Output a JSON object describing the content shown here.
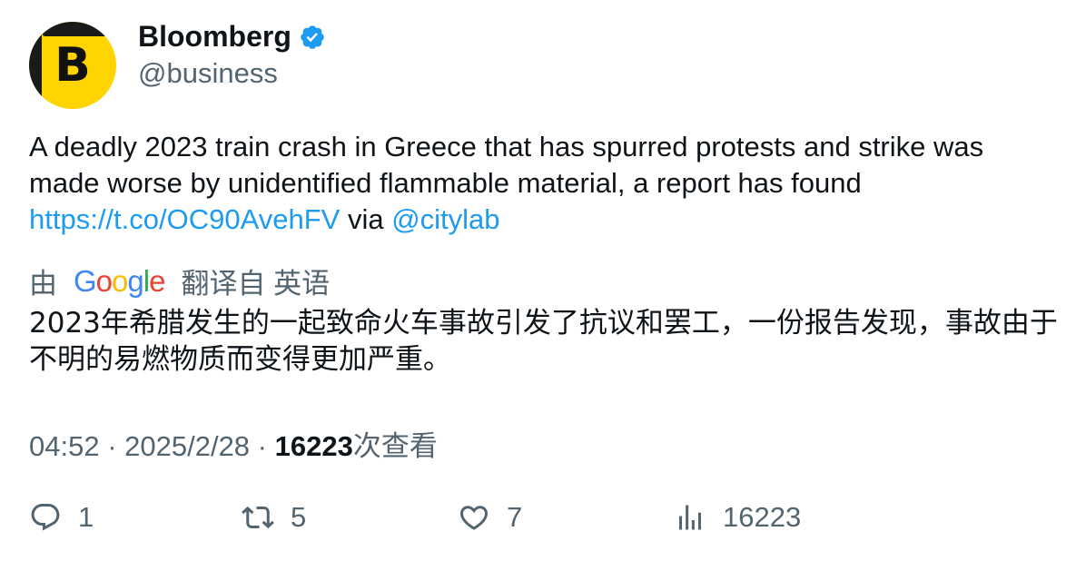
{
  "author": {
    "name": "Bloomberg",
    "handle": "@business",
    "avatar_letter": "B",
    "verified_icon": "verified-badge-icon",
    "verified_color": "#1d9bf0"
  },
  "tweet": {
    "text_before_link": "A deadly 2023 train crash in Greece that has spurred protests and strike was made worse by unidentified flammable material, a report has found ",
    "link": "https://t.co/OC90AvehFV",
    "text_via": " via ",
    "mention": "@citylab"
  },
  "translation": {
    "prefix": "由",
    "google_logo": "Google",
    "suffix": "翻译自 英语",
    "text": "2023年希腊发生的一起致命火车事故引发了抗议和罢工，一份报告发现，事故由于不明的易燃物质而变得更加严重。"
  },
  "meta": {
    "time": "04:52",
    "separator": " · ",
    "date": "2025/2/28",
    "views_count": "16223",
    "views_label": "次查看"
  },
  "actions": {
    "replies": "1",
    "retweets": "5",
    "likes": "7",
    "views": "16223"
  },
  "colors": {
    "accent": "#1d9bf0",
    "secondary_text": "#536471",
    "avatar_yellow": "#ffd400"
  }
}
